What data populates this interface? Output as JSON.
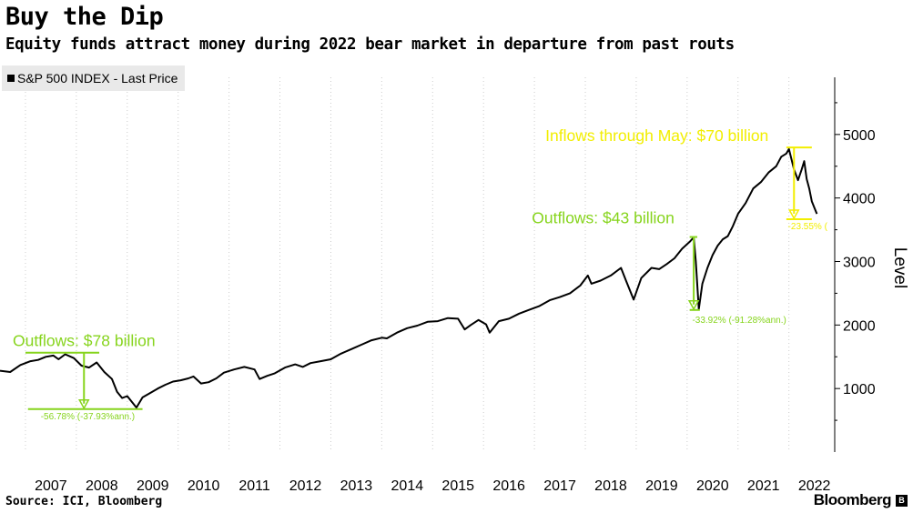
{
  "header": {
    "title": "Buy the Dip",
    "subtitle": "Equity funds attract money during 2022 bear market in departure from past routs"
  },
  "footer": {
    "source": "Source: ICI, Bloomberg",
    "brand": "Bloomberg",
    "brand_mark": "B"
  },
  "colors": {
    "line": "#000000",
    "green": "#86d41c",
    "yellow": "#f2ee00",
    "grid": "#cccccc"
  },
  "chart_data": {
    "type": "line",
    "title": "Buy the Dip",
    "subtitle": "Equity funds attract money during 2022 bear market in departure from past routs",
    "ylabel": "Level",
    "xlabel": "",
    "xlim": [
      2006.5,
      2022.9
    ],
    "ylim": [
      0,
      5900
    ],
    "y_axis_side": "right",
    "grid": "vertical dotted lines at year boundaries",
    "legend_position": "top-left",
    "x_ticks": [
      "2007",
      "2008",
      "2009",
      "2010",
      "2011",
      "2012",
      "2013",
      "2014",
      "2015",
      "2016",
      "2017",
      "2018",
      "2019",
      "2020",
      "2021",
      "2022"
    ],
    "y_ticks": [
      1000,
      2000,
      3000,
      4000,
      5000
    ],
    "series": [
      {
        "name": "S&P 500 INDEX - Last Price",
        "x": [
          2006.5,
          2006.7,
          2006.9,
          2007.1,
          2007.25,
          2007.4,
          2007.55,
          2007.65,
          2007.78,
          2007.95,
          2008.1,
          2008.25,
          2008.4,
          2008.55,
          2008.7,
          2008.8,
          2008.9,
          2009.0,
          2009.1,
          2009.18,
          2009.3,
          2009.45,
          2009.6,
          2009.75,
          2009.9,
          2010.05,
          2010.2,
          2010.3,
          2010.45,
          2010.6,
          2010.75,
          2010.9,
          2011.1,
          2011.3,
          2011.5,
          2011.6,
          2011.75,
          2011.9,
          2012.1,
          2012.3,
          2012.45,
          2012.6,
          2012.8,
          2013.0,
          2013.2,
          2013.4,
          2013.6,
          2013.8,
          2014.0,
          2014.1,
          2014.3,
          2014.5,
          2014.7,
          2014.9,
          2015.1,
          2015.3,
          2015.5,
          2015.63,
          2015.75,
          2015.9,
          2016.05,
          2016.12,
          2016.3,
          2016.5,
          2016.7,
          2016.9,
          2017.1,
          2017.3,
          2017.5,
          2017.7,
          2017.9,
          2018.05,
          2018.12,
          2018.3,
          2018.5,
          2018.7,
          2018.8,
          2018.95,
          2019.1,
          2019.3,
          2019.45,
          2019.6,
          2019.75,
          2019.9,
          2020.05,
          2020.13,
          2020.17,
          2020.23,
          2020.3,
          2020.4,
          2020.5,
          2020.6,
          2020.7,
          2020.8,
          2020.9,
          2021.0,
          2021.15,
          2021.3,
          2021.45,
          2021.6,
          2021.75,
          2021.85,
          2021.95,
          2022.0,
          2022.1,
          2022.18,
          2022.25,
          2022.3,
          2022.35,
          2022.4,
          2022.45,
          2022.5,
          2022.55
        ],
        "values": [
          1280,
          1260,
          1370,
          1430,
          1450,
          1500,
          1520,
          1460,
          1540,
          1480,
          1360,
          1330,
          1410,
          1260,
          1150,
          950,
          850,
          880,
          780,
          700,
          860,
          930,
          1000,
          1060,
          1110,
          1130,
          1160,
          1190,
          1080,
          1100,
          1160,
          1250,
          1300,
          1340,
          1300,
          1150,
          1200,
          1240,
          1330,
          1380,
          1340,
          1400,
          1430,
          1460,
          1550,
          1620,
          1690,
          1760,
          1800,
          1790,
          1880,
          1950,
          1990,
          2050,
          2060,
          2110,
          2100,
          1930,
          2000,
          2080,
          2010,
          1880,
          2060,
          2100,
          2180,
          2240,
          2300,
          2390,
          2440,
          2500,
          2620,
          2780,
          2650,
          2700,
          2780,
          2900,
          2700,
          2400,
          2740,
          2900,
          2880,
          2960,
          3050,
          3200,
          3310,
          3380,
          3000,
          2250,
          2650,
          2900,
          3100,
          3250,
          3350,
          3400,
          3560,
          3750,
          3920,
          4150,
          4250,
          4400,
          4500,
          4650,
          4700,
          4770,
          4450,
          4280,
          4450,
          4580,
          4300,
          4150,
          3950,
          3850,
          3750
        ]
      }
    ],
    "annotations": [
      {
        "text": "Outflows: $78 billion",
        "color": "green",
        "x_start": 2007.75,
        "x_end": 2009.15,
        "top_value": 1565,
        "bottom_value": 676,
        "drawdown_label": "-56.78% (-37.93%ann.)"
      },
      {
        "text": "Outflows: $43 billion",
        "color": "green",
        "x_start": 2020.13,
        "x_end": 2020.23,
        "top_value": 3386,
        "bottom_value": 2237,
        "drawdown_label": "-33.92% (-91.28%ann.)"
      },
      {
        "text": "Inflows through May: $70 billion",
        "color": "yellow",
        "x_start": 2021.95,
        "x_end": 2022.45,
        "top_value": 4796,
        "bottom_value": 3666,
        "drawdown_label": "-23.55% ("
      }
    ]
  }
}
